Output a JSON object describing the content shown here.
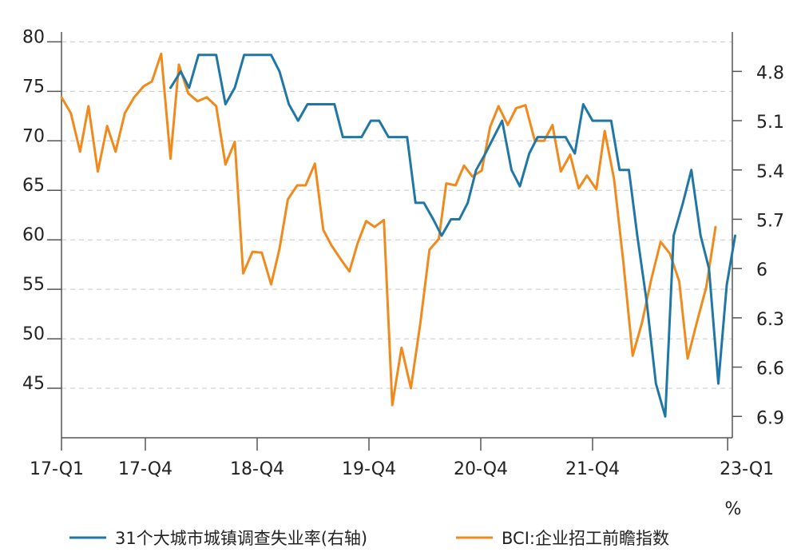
{
  "chart_data": {
    "type": "line",
    "title": "",
    "unit_label": "%",
    "colors": {
      "unemployment": "#1F77A6",
      "bci": "#F08A1C",
      "grid": "#c8c8c8",
      "axis": "#555555"
    },
    "x_tick_labels": [
      "17-Q1",
      "17-Q4",
      "18-Q4",
      "19-Q4",
      "20-Q4",
      "21-Q4",
      "23-Q1"
    ],
    "x_tick_positions": [
      0,
      9,
      21,
      33,
      45,
      57,
      71.5
    ],
    "x_range": [
      0,
      72
    ],
    "left_axis": {
      "range": [
        40,
        81
      ],
      "ticks": [
        45,
        50,
        55,
        60,
        65,
        70,
        75,
        80
      ]
    },
    "right_axis": {
      "range_top": 4.56,
      "range_bottom": 7.03,
      "inverted": true,
      "ticks": [
        "4.8",
        "5.1",
        "5.4",
        "5.7",
        "6",
        "6.3",
        "6.6",
        "6.9"
      ]
    },
    "series": [
      {
        "name": "31个大城市城镇调查失业率(右轴)",
        "axis": "right",
        "color": "#1F77A6",
        "points": [
          [
            11.7,
            4.9
          ],
          [
            12.8,
            4.8
          ],
          [
            13.7,
            4.9
          ],
          [
            14.7,
            4.7
          ],
          [
            15.6,
            4.7
          ],
          [
            16.6,
            4.7
          ],
          [
            17.6,
            5.0
          ],
          [
            18.6,
            4.9
          ],
          [
            19.6,
            4.7
          ],
          [
            20.5,
            4.7
          ],
          [
            21.5,
            4.7
          ],
          [
            22.5,
            4.7
          ],
          [
            23.4,
            4.8
          ],
          [
            24.4,
            5.0
          ],
          [
            25.4,
            5.1
          ],
          [
            26.4,
            5.0
          ],
          [
            27.3,
            5.0
          ],
          [
            28.3,
            5.0
          ],
          [
            29.3,
            5.0
          ],
          [
            30.2,
            5.2
          ],
          [
            31.2,
            5.2
          ],
          [
            32.2,
            5.2
          ],
          [
            33.2,
            5.1
          ],
          [
            34.1,
            5.1
          ],
          [
            35.1,
            5.2
          ],
          [
            36.1,
            5.2
          ],
          [
            37.1,
            5.2
          ],
          [
            38.0,
            5.6
          ],
          [
            38.9,
            5.6
          ],
          [
            39.9,
            5.7
          ],
          [
            40.8,
            5.8
          ],
          [
            41.8,
            5.7
          ],
          [
            42.7,
            5.7
          ],
          [
            43.6,
            5.6
          ],
          [
            44.5,
            5.4
          ],
          [
            45.5,
            5.3
          ],
          [
            46.4,
            5.2
          ],
          [
            47.3,
            5.1
          ],
          [
            48.3,
            5.4
          ],
          [
            49.2,
            5.5
          ],
          [
            50.2,
            5.3
          ],
          [
            51.1,
            5.2
          ],
          [
            52.1,
            5.2
          ],
          [
            53.1,
            5.2
          ],
          [
            54.1,
            5.2
          ],
          [
            55.1,
            5.3
          ],
          [
            56.0,
            5.0
          ],
          [
            57.0,
            5.1
          ],
          [
            58.0,
            5.1
          ],
          [
            59.0,
            5.1
          ],
          [
            59.9,
            5.4
          ],
          [
            60.9,
            5.4
          ],
          [
            61.8,
            5.8
          ],
          [
            62.8,
            6.2
          ],
          [
            63.8,
            6.7
          ],
          [
            64.8,
            6.9
          ],
          [
            65.7,
            5.8
          ],
          [
            66.7,
            5.6
          ],
          [
            67.6,
            5.4
          ],
          [
            68.6,
            5.8
          ],
          [
            69.5,
            6.0
          ],
          [
            70.5,
            6.7
          ],
          [
            71.4,
            6.1
          ],
          [
            72.3,
            5.8
          ]
        ]
      },
      {
        "name": "BCI:企业招工前瞻指数",
        "axis": "left",
        "color": "#F08A1C",
        "points": [
          [
            0.0,
            74.4
          ],
          [
            1.0,
            72.8
          ],
          [
            2.0,
            68.9
          ],
          [
            2.9,
            73.5
          ],
          [
            3.9,
            66.9
          ],
          [
            4.9,
            71.5
          ],
          [
            5.8,
            68.9
          ],
          [
            6.8,
            72.8
          ],
          [
            7.8,
            74.4
          ],
          [
            8.8,
            75.5
          ],
          [
            9.7,
            76.0
          ],
          [
            10.7,
            78.8
          ],
          [
            11.7,
            68.2
          ],
          [
            12.6,
            77.7
          ],
          [
            13.6,
            74.8
          ],
          [
            14.6,
            74.0
          ],
          [
            15.6,
            74.4
          ],
          [
            16.6,
            73.5
          ],
          [
            17.6,
            67.6
          ],
          [
            18.6,
            69.9
          ],
          [
            19.5,
            56.6
          ],
          [
            20.5,
            58.8
          ],
          [
            21.5,
            58.7
          ],
          [
            22.5,
            55.5
          ],
          [
            23.4,
            59.1
          ],
          [
            24.3,
            64.1
          ],
          [
            25.3,
            65.5
          ],
          [
            26.2,
            65.5
          ],
          [
            27.2,
            67.7
          ],
          [
            28.1,
            61.0
          ],
          [
            29.0,
            59.4
          ],
          [
            30.0,
            58.0
          ],
          [
            30.9,
            56.8
          ],
          [
            31.8,
            59.7
          ],
          [
            32.7,
            61.9
          ],
          [
            33.6,
            61.3
          ],
          [
            34.6,
            62.0
          ],
          [
            35.5,
            43.3
          ],
          [
            36.5,
            49.1
          ],
          [
            37.5,
            45.0
          ],
          [
            38.5,
            51.5
          ],
          [
            39.5,
            59.0
          ],
          [
            40.5,
            60.1
          ],
          [
            41.3,
            65.7
          ],
          [
            42.3,
            65.5
          ],
          [
            43.2,
            67.5
          ],
          [
            44.1,
            66.4
          ],
          [
            45.1,
            67.0
          ],
          [
            46.0,
            71.4
          ],
          [
            46.9,
            73.5
          ],
          [
            47.9,
            71.6
          ],
          [
            48.8,
            73.3
          ],
          [
            49.8,
            73.6
          ],
          [
            50.8,
            70.0
          ],
          [
            51.8,
            70.0
          ],
          [
            52.7,
            71.6
          ],
          [
            53.6,
            66.9
          ],
          [
            54.6,
            68.6
          ],
          [
            55.5,
            65.2
          ],
          [
            56.4,
            66.5
          ],
          [
            57.4,
            65.1
          ],
          [
            58.3,
            71.0
          ],
          [
            59.3,
            66.2
          ],
          [
            60.3,
            57.8
          ],
          [
            61.3,
            48.3
          ],
          [
            62.3,
            51.6
          ],
          [
            63.3,
            56.0
          ],
          [
            64.3,
            59.8
          ],
          [
            65.3,
            58.6
          ],
          [
            66.3,
            55.8
          ],
          [
            67.2,
            48.0
          ],
          [
            68.2,
            51.7
          ],
          [
            69.2,
            55.2
          ],
          [
            70.2,
            61.3
          ]
        ]
      }
    ]
  },
  "legend": {
    "unemployment": "31个大城市城镇调查失业率(右轴)",
    "bci": "BCI:企业招工前瞻指数"
  }
}
